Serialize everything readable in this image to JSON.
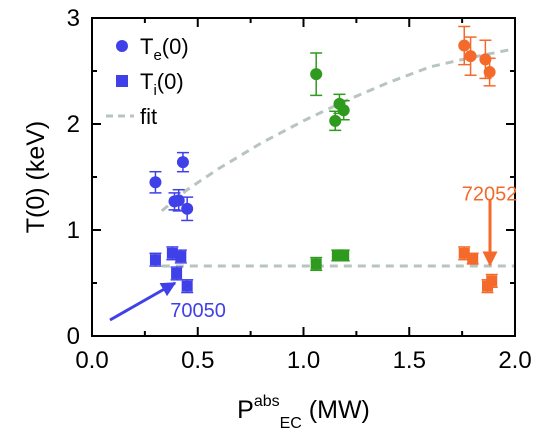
{
  "chart_data": {
    "type": "scatter",
    "xlabel": {
      "main": "P",
      "sup": "abs",
      "sub": "EC",
      "unit": " (MW)"
    },
    "ylabel": "T(0) (keV)",
    "xlim": [
      0,
      2.0
    ],
    "ylim": [
      0,
      3
    ],
    "xticks": [
      "0.0",
      "0.5",
      "1.0",
      "1.5",
      "2.0"
    ],
    "yticks": [
      "0",
      "1",
      "2",
      "3"
    ],
    "grid": false,
    "legend_position": "top-left",
    "legend": [
      {
        "main": "T",
        "sub": "e",
        "suffix": "(0)",
        "marker": "circle"
      },
      {
        "main": "T",
        "sub": "i",
        "suffix": "(0)",
        "marker": "square"
      },
      {
        "label": "fit",
        "marker": "dashed-line"
      }
    ],
    "colors": {
      "blue": "#4040e8",
      "green": "#2e9a1e",
      "orange": "#f46a2a",
      "fit": "#b8c4c0"
    },
    "series": [
      {
        "marker": "circle",
        "color": "blue",
        "points": [
          {
            "x": 0.3,
            "y": 1.45,
            "err": 0.1
          },
          {
            "x": 0.39,
            "y": 1.27,
            "err": 0.08
          },
          {
            "x": 0.41,
            "y": 1.28,
            "err": 0.1
          },
          {
            "x": 0.43,
            "y": 1.64,
            "err": 0.09
          },
          {
            "x": 0.45,
            "y": 1.2,
            "err": 0.11
          }
        ]
      },
      {
        "marker": "circle",
        "color": "green",
        "points": [
          {
            "x": 1.06,
            "y": 2.47,
            "err": 0.2
          },
          {
            "x": 1.15,
            "y": 2.03,
            "err": 0.09
          },
          {
            "x": 1.17,
            "y": 2.19,
            "err": 0.09
          },
          {
            "x": 1.19,
            "y": 2.13,
            "err": 0.09
          }
        ]
      },
      {
        "marker": "circle",
        "color": "orange",
        "points": [
          {
            "x": 1.76,
            "y": 2.74,
            "err": 0.18
          },
          {
            "x": 1.79,
            "y": 2.64,
            "err": 0.18
          },
          {
            "x": 1.86,
            "y": 2.61,
            "err": 0.18
          },
          {
            "x": 1.88,
            "y": 2.49,
            "err": 0.13
          }
        ]
      },
      {
        "marker": "square",
        "color": "blue",
        "points": [
          {
            "x": 0.3,
            "y": 0.72,
            "err": 0.06
          },
          {
            "x": 0.38,
            "y": 0.78,
            "err": 0.06
          },
          {
            "x": 0.4,
            "y": 0.59,
            "err": 0.06
          },
          {
            "x": 0.42,
            "y": 0.75,
            "err": 0.06
          },
          {
            "x": 0.45,
            "y": 0.47,
            "err": 0.06
          }
        ]
      },
      {
        "marker": "square",
        "color": "green",
        "points": [
          {
            "x": 1.06,
            "y": 0.68,
            "err": 0.06
          },
          {
            "x": 1.16,
            "y": 0.76,
            "err": 0.05
          },
          {
            "x": 1.19,
            "y": 0.76,
            "err": 0.05
          }
        ]
      },
      {
        "marker": "square",
        "color": "orange",
        "points": [
          {
            "x": 1.76,
            "y": 0.78,
            "err": 0.06
          },
          {
            "x": 1.8,
            "y": 0.73,
            "err": 0.05
          },
          {
            "x": 1.87,
            "y": 0.47,
            "err": 0.06
          },
          {
            "x": 1.89,
            "y": 0.52,
            "err": 0.06
          }
        ]
      }
    ],
    "fits": [
      {
        "name": "Te fit",
        "points": [
          [
            0.33,
            1.18
          ],
          [
            0.45,
            1.38
          ],
          [
            0.6,
            1.58
          ],
          [
            0.8,
            1.82
          ],
          [
            1.0,
            2.03
          ],
          [
            1.2,
            2.22
          ],
          [
            1.4,
            2.39
          ],
          [
            1.6,
            2.54
          ],
          [
            1.8,
            2.63
          ],
          [
            2.0,
            2.71
          ]
        ]
      },
      {
        "name": "Ti fit",
        "points": [
          [
            0.33,
            0.66
          ],
          [
            2.0,
            0.66
          ]
        ]
      }
    ],
    "annotations": [
      {
        "text": "70050",
        "color": "blue",
        "x": 0.37,
        "y": 0.18
      },
      {
        "text": "72052",
        "color": "orange",
        "x": 1.88,
        "y": 1.28
      }
    ]
  }
}
